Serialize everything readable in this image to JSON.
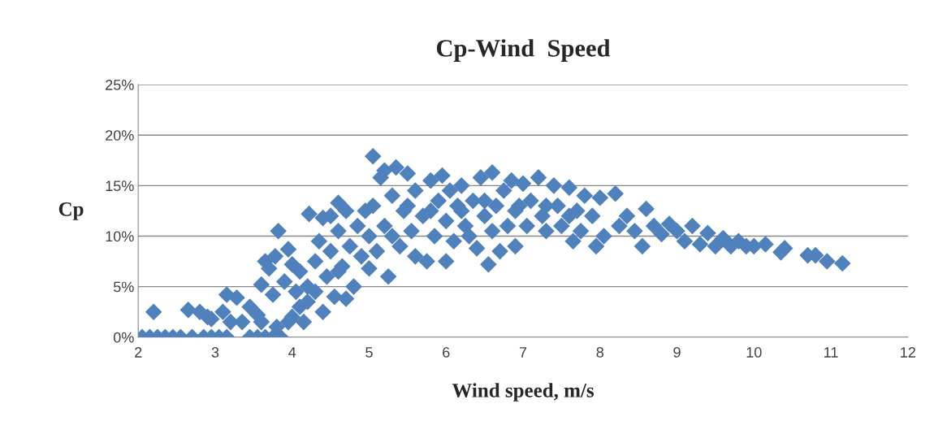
{
  "chart_data": {
    "type": "scatter",
    "title": "Cp-Wind  Speed",
    "xlabel": "Wind speed, m/s",
    "ylabel": "Cp",
    "x": [
      2.05,
      2.15,
      2.25,
      2.35,
      2.45,
      2.55,
      2.7,
      2.85,
      2.95,
      3.05,
      3.15,
      3.45,
      3.55,
      3.65,
      3.75,
      3.85,
      2.2,
      2.65,
      2.8,
      2.9,
      2.95,
      3.1,
      3.15,
      3.28,
      3.2,
      3.35,
      3.45,
      3.55,
      3.6,
      3.65,
      3.7,
      3.75,
      3.78,
      3.82,
      3.6,
      3.8,
      3.9,
      3.95,
      4.0,
      4.05,
      4.1,
      4.1,
      4.15,
      4.2,
      4.22,
      4.3,
      4.35,
      4.4,
      4.4,
      4.45,
      4.5,
      4.5,
      4.55,
      4.6,
      4.6,
      4.65,
      4.7,
      4.7,
      4.75,
      4.8,
      4.85,
      4.9,
      4.95,
      5.0,
      5.0,
      5.05,
      5.05,
      5.1,
      5.15,
      5.2,
      5.2,
      5.25,
      5.3,
      5.35,
      5.4,
      5.45,
      5.5,
      5.55,
      5.6,
      5.6,
      5.7,
      5.75,
      5.8,
      5.85,
      5.9,
      5.95,
      6.0,
      6.0,
      6.05,
      6.1,
      6.15,
      6.2,
      6.25,
      6.3,
      6.35,
      6.4,
      6.45,
      6.5,
      6.55,
      6.6,
      6.6,
      6.65,
      6.7,
      6.75,
      6.8,
      6.85,
      6.9,
      6.95,
      7.0,
      7.05,
      7.1,
      7.2,
      7.25,
      7.3,
      7.4,
      7.45,
      7.5,
      7.6,
      7.65,
      7.7,
      7.75,
      7.8,
      7.9,
      7.95,
      8.0,
      8.05,
      8.2,
      8.25,
      8.35,
      8.45,
      8.55,
      8.6,
      8.7,
      8.8,
      8.9,
      9.0,
      9.1,
      9.2,
      9.3,
      9.4,
      9.5,
      9.6,
      9.7,
      9.8,
      9.9,
      10.0,
      10.15,
      10.35,
      10.4,
      10.7,
      10.8,
      10.95,
      11.15,
      5.5,
      5.8,
      6.2,
      6.5,
      6.9,
      7.3,
      7.6,
      5.3,
      4.3,
      4.6,
      4.0,
      4.2,
      3.95
    ],
    "series": [
      {
        "color": "#4f81bd",
        "values": [
          0,
          0,
          0,
          0,
          0,
          0,
          0,
          0,
          0,
          0,
          0,
          0,
          0,
          0,
          0,
          0,
          2.5,
          2.7,
          2.5,
          2.0,
          1.8,
          2.5,
          4.2,
          3.9,
          1.5,
          1.5,
          3.0,
          2.2,
          5.2,
          7.5,
          6.8,
          4.2,
          8.0,
          10.5,
          1.5,
          1.0,
          5.5,
          8.7,
          7.2,
          4.5,
          3.0,
          6.5,
          1.5,
          5.0,
          12.2,
          7.5,
          9.5,
          11.8,
          2.5,
          6.0,
          8.5,
          12.0,
          4.0,
          13.3,
          10.5,
          7.0,
          12.5,
          3.8,
          9.0,
          5.0,
          11.0,
          8.0,
          12.5,
          10.0,
          6.8,
          17.9,
          13.0,
          8.5,
          15.8,
          11.0,
          16.5,
          6.0,
          14.0,
          16.8,
          9.0,
          12.5,
          16.2,
          10.5,
          8.0,
          14.5,
          12.0,
          7.5,
          15.5,
          10.0,
          13.5,
          16.0,
          7.5,
          11.5,
          14.5,
          9.5,
          13.0,
          15.0,
          11.0,
          10.0,
          13.5,
          8.8,
          15.8,
          12.0,
          7.2,
          16.3,
          10.5,
          13.0,
          8.5,
          14.5,
          11.0,
          15.5,
          9.0,
          13.0,
          15.2,
          11.0,
          13.5,
          15.8,
          12.0,
          10.5,
          15.0,
          13.0,
          11.0,
          14.8,
          9.5,
          12.5,
          10.5,
          14.0,
          12.0,
          9.0,
          13.8,
          10.0,
          14.2,
          11.0,
          12.0,
          10.5,
          9.0,
          12.7,
          11.0,
          10.2,
          11.2,
          10.5,
          9.5,
          11.0,
          9.2,
          10.3,
          9.0,
          9.8,
          9.0,
          9.5,
          9.0,
          9.0,
          9.2,
          8.4,
          8.8,
          8.1,
          8.1,
          7.5,
          7.3,
          13.0,
          12.5,
          12.5,
          13.5,
          12.5,
          13.0,
          12.0,
          10.0,
          4.5,
          6.5,
          2.0,
          3.5,
          1.5
        ]
      }
    ],
    "xlim": [
      2,
      12
    ],
    "xticks": [
      2,
      3,
      4,
      5,
      6,
      7,
      8,
      9,
      10,
      11,
      12
    ],
    "ylim": [
      0,
      25
    ],
    "yticks": [
      {
        "value": 0,
        "label": "0%"
      },
      {
        "value": 5,
        "label": "5%"
      },
      {
        "value": 10,
        "label": "10%"
      },
      {
        "value": 15,
        "label": "15%"
      },
      {
        "value": 20,
        "label": "20%"
      },
      {
        "value": 25,
        "label": "25%"
      }
    ],
    "grid": "y",
    "marker": "diamond"
  }
}
